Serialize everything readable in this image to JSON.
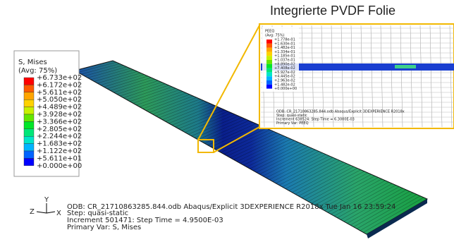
{
  "legend": {
    "title": "S, Mises",
    "subtitle": "(Avg: 75%)",
    "labels": [
      "+6.733e+02",
      "+6.172e+02",
      "+5.611e+02",
      "+5.050e+02",
      "+4.489e+02",
      "+3.928e+02",
      "+3.366e+02",
      "+2.805e+02",
      "+2.244e+02",
      "+1.683e+02",
      "+1.122e+02",
      "+5.611e+01",
      "+0.000e+00"
    ],
    "colors": [
      "#ff0000",
      "#ff5a00",
      "#ffa500",
      "#ffd200",
      "#c8f000",
      "#64e600",
      "#00e628",
      "#00e678",
      "#00e6c8",
      "#00b4ff",
      "#0064ff",
      "#0000ff"
    ]
  },
  "triad": {
    "y": "Y",
    "z": "Z",
    "x": "X"
  },
  "info": {
    "odb": "ODB: CR_21710863285.844.odb    Abaqus/Explicit 3DEXPERIENCE R2018x    Tue Jan 16 23:59:24",
    "step": "Step: quasi-static",
    "increment": "Increment    501471: Step Time =    4.9500E-03",
    "primary": "Primary Var: S, Mises"
  },
  "inset": {
    "title": "Integrierte PVDF Folie",
    "legend_title": "PEEQ",
    "legend_subtitle": "(Avg: 75%)",
    "labels": [
      "+1.778e-01",
      "+1.630e-01",
      "+1.482e-01",
      "+1.334e-01",
      "+1.185e-01",
      "+1.037e-01",
      "+8.890e-02",
      "+7.408e-02",
      "+5.927e-02",
      "+4.445e-02",
      "+2.963e-02",
      "+1.482e-02",
      "+0.000e+00"
    ],
    "odb": "ODB: CR_21710863285.844.odb    Abaqus/Explicit 3DEXPERIENCE R2018x",
    "step": "Step: quasi-static",
    "increment": "Increment    638524: Step Time =    6.3000E-03",
    "primary": "Primary Var: PEEQ"
  }
}
